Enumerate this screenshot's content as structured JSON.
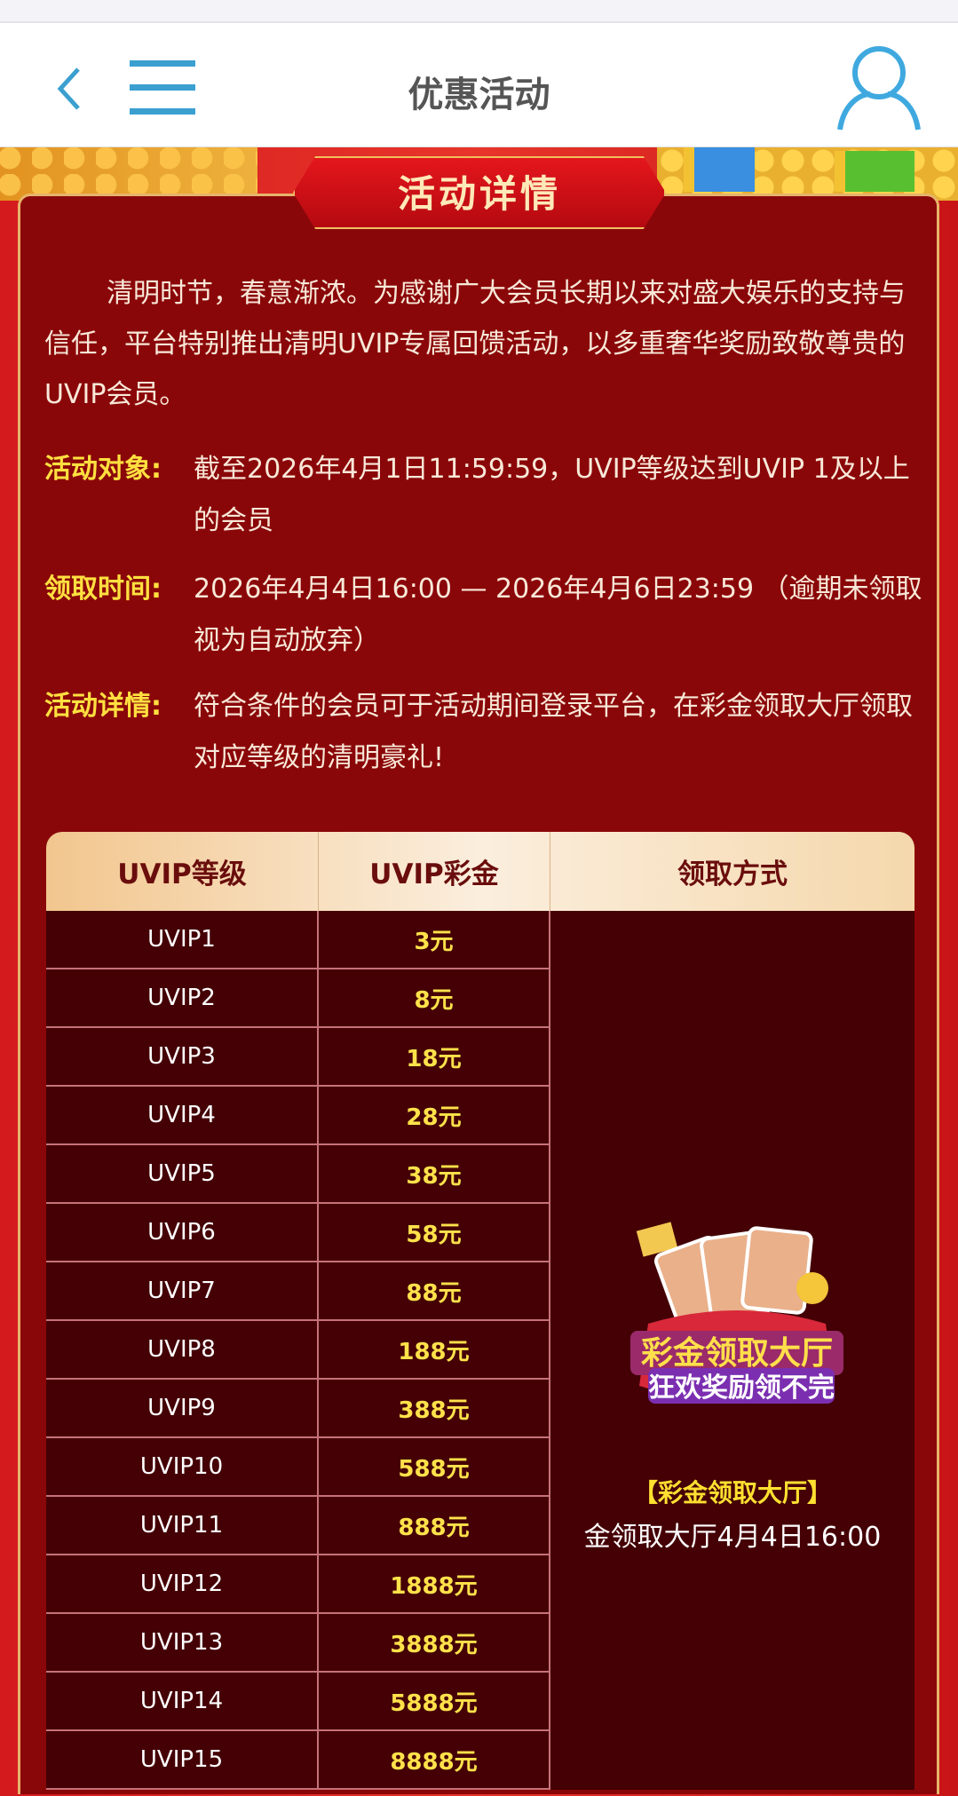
{
  "header": {
    "title": "优惠活动",
    "back_icon": "chevron-left-icon",
    "menu_icon": "hamburger-menu-icon",
    "user_icon": "user-icon",
    "accent": "#3b9fd0"
  },
  "section_title": "活动详情",
  "intro": "清明时节，春意渐浓。为感谢广大会员长期以来对盛大娱乐的支持与信任，平台特别推出清明UVIP专属回馈活动，以多重奢华奖励致敬尊贵的UVIP会员。",
  "details": [
    {
      "label": "活动对象:",
      "value": "截至2026年4月1日11:59:59，UVIP等级达到UVIP 1及以上的会员"
    },
    {
      "label": "领取时间:",
      "value": "2026年4月4日16:00 — 2026年4月6日23:59 （逾期未领取视为自动放弃）"
    },
    {
      "label": "活动详情:",
      "value": "符合条件的会员可于活动期间登录平台，在彩金领取大厅领取对应等级的清明豪礼!"
    }
  ],
  "table": {
    "headers": [
      "UVIP等级",
      "UVIP彩金",
      "领取方式"
    ],
    "rows": [
      {
        "level": "UVIP1",
        "bonus": "3元"
      },
      {
        "level": "UVIP2",
        "bonus": "8元"
      },
      {
        "level": "UVIP3",
        "bonus": "18元"
      },
      {
        "level": "UVIP4",
        "bonus": "28元"
      },
      {
        "level": "UVIP5",
        "bonus": "38元"
      },
      {
        "level": "UVIP6",
        "bonus": "58元"
      },
      {
        "level": "UVIP7",
        "bonus": "88元"
      },
      {
        "level": "UVIP8",
        "bonus": "188元"
      },
      {
        "level": "UVIP9",
        "bonus": "388元"
      },
      {
        "level": "UVIP10",
        "bonus": "588元"
      },
      {
        "level": "UVIP11",
        "bonus": "888元"
      },
      {
        "level": "UVIP12",
        "bonus": "1888元"
      },
      {
        "level": "UVIP13",
        "bonus": "3888元"
      },
      {
        "level": "UVIP14",
        "bonus": "5888元"
      },
      {
        "level": "UVIP15",
        "bonus": "8888元"
      }
    ],
    "method": {
      "promo_line1": "彩金领取大厅",
      "promo_line2": "狂欢奖励领不完",
      "link": "【彩金领取大厅】",
      "note": "金领取大厅4月4日16:00"
    }
  },
  "colors": {
    "label_gold": "#ffe040",
    "panel": "#8a0709",
    "table_body": "#440005"
  }
}
